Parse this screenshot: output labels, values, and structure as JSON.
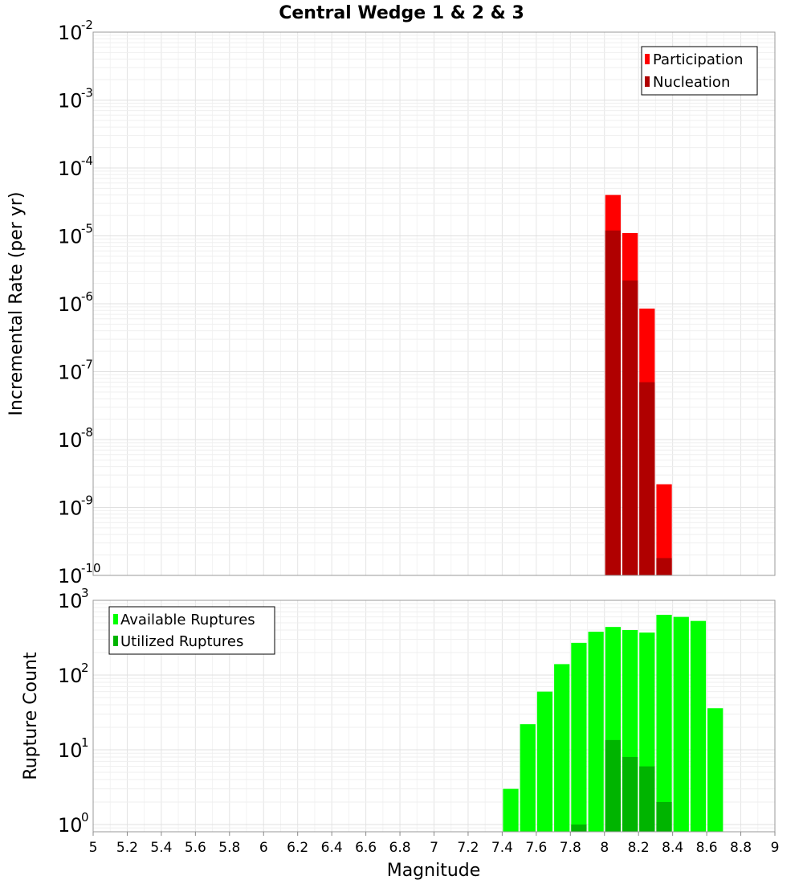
{
  "title": "Central Wedge 1 & 2 & 3",
  "chart_data": [
    {
      "type": "bar",
      "panel": "top",
      "ylabel": "Incremental Rate (per yr)",
      "yscale": "log",
      "ylim": [
        1e-10,
        0.01
      ],
      "xlim": [
        5,
        9
      ],
      "bin_width": 0.1,
      "y_ticks": [
        {
          "base": "10",
          "exp": "-2"
        },
        {
          "base": "10",
          "exp": "-3"
        },
        {
          "base": "10",
          "exp": "-4"
        },
        {
          "base": "10",
          "exp": "-5"
        },
        {
          "base": "10",
          "exp": "-6"
        },
        {
          "base": "10",
          "exp": "-7"
        },
        {
          "base": "10",
          "exp": "-8"
        },
        {
          "base": "10",
          "exp": "-9"
        },
        {
          "base": "10",
          "exp": "-10"
        }
      ],
      "legend": {
        "position": "top-right",
        "entries": [
          "Participation",
          "Nucleation"
        ]
      },
      "series": [
        {
          "name": "Participation",
          "color": "#ff0000",
          "x": [
            8.05,
            8.15,
            8.25,
            8.35
          ],
          "values": [
            4e-05,
            1.1e-05,
            8.5e-07,
            2.2e-09
          ]
        },
        {
          "name": "Nucleation",
          "color": "#b00000",
          "x": [
            8.05,
            8.15,
            8.25,
            8.35
          ],
          "values": [
            1.2e-05,
            2.2e-06,
            7e-08,
            1.8e-10
          ]
        }
      ]
    },
    {
      "type": "bar",
      "panel": "bottom",
      "xlabel": "Magnitude",
      "ylabel": "Rupture Count",
      "yscale": "log",
      "ylim": [
        0.8,
        1000
      ],
      "xlim": [
        5,
        9
      ],
      "bin_width": 0.1,
      "x_ticks": [
        "5",
        "5.2",
        "5.4",
        "5.6",
        "5.8",
        "6",
        "6.2",
        "6.4",
        "6.6",
        "6.8",
        "7",
        "7.2",
        "7.4",
        "7.6",
        "7.8",
        "8",
        "8.2",
        "8.4",
        "8.6",
        "8.8",
        "9"
      ],
      "y_ticks": [
        {
          "base": "10",
          "exp": "3"
        },
        {
          "base": "10",
          "exp": "2"
        },
        {
          "base": "10",
          "exp": "1"
        },
        {
          "base": "10",
          "exp": "0"
        }
      ],
      "legend": {
        "position": "top-left",
        "entries": [
          "Available Ruptures",
          "Utilized Ruptures"
        ]
      },
      "series": [
        {
          "name": "Available Ruptures",
          "color": "#00ff00",
          "x": [
            7.45,
            7.55,
            7.65,
            7.75,
            7.85,
            7.95,
            8.05,
            8.15,
            8.25,
            8.35,
            8.45,
            8.55,
            8.65
          ],
          "values": [
            3,
            22,
            60,
            140,
            270,
            380,
            440,
            400,
            370,
            640,
            600,
            530,
            36
          ]
        },
        {
          "name": "Utilized Ruptures",
          "color": "#00b400",
          "x": [
            7.85,
            8.05,
            8.15,
            8.25,
            8.35
          ],
          "values": [
            1,
            13.5,
            8,
            6,
            2
          ]
        }
      ]
    }
  ]
}
